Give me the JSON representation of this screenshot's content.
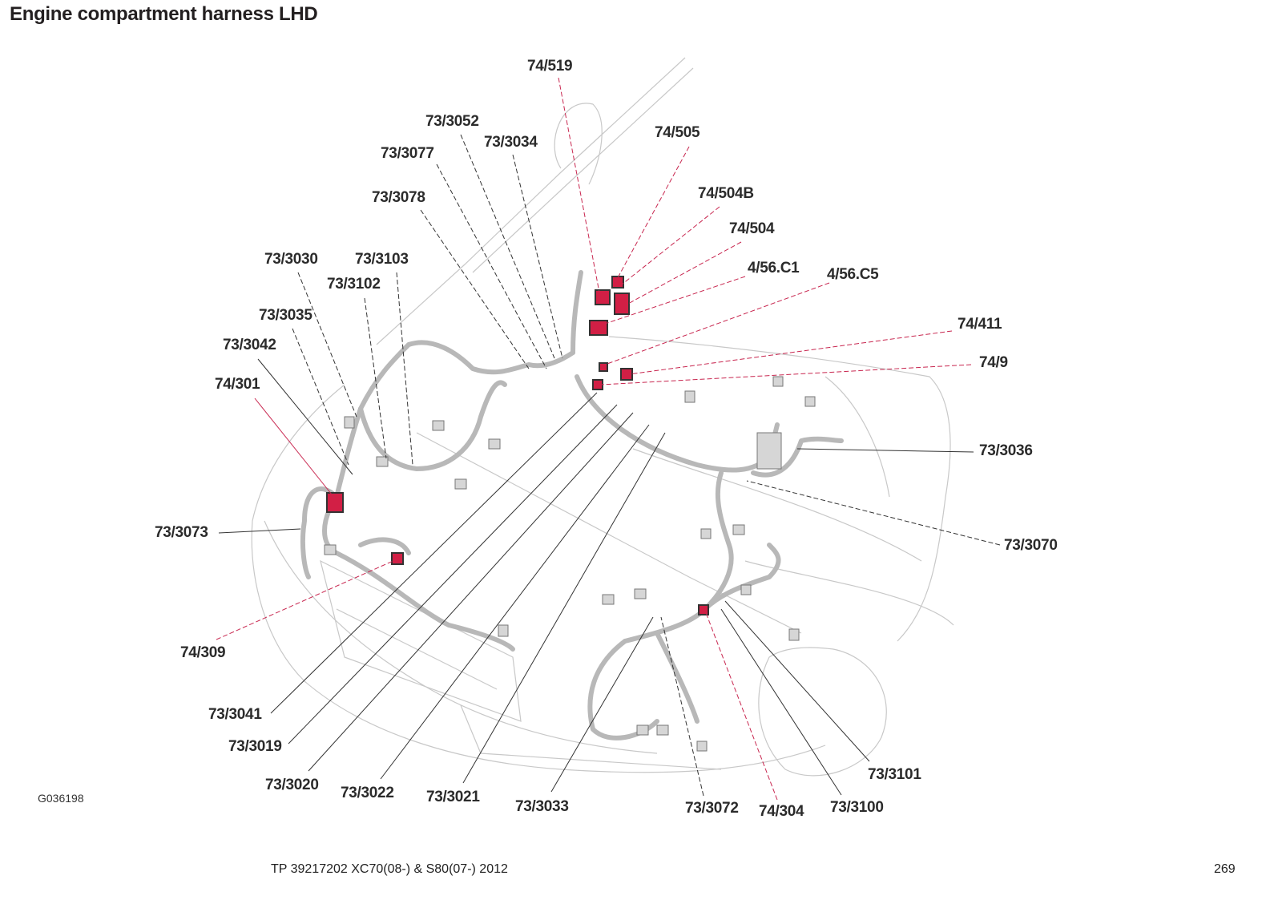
{
  "title": "Engine compartment harness LHD",
  "figure_id": "G036198",
  "footer": {
    "document": "TP 39217202 XC70(08-) & S80(07-) 2012",
    "page": "269"
  },
  "colors": {
    "connector_highlight": "#d21f45",
    "harness": "#b8b8b8",
    "outline": "#c8c8c8",
    "leader_red": "#c8264f",
    "leader_black": "#333333"
  },
  "labels": [
    {
      "text": "74/519",
      "type": "highlighted"
    },
    {
      "text": "73/3052",
      "type": "normal"
    },
    {
      "text": "73/3034",
      "type": "normal"
    },
    {
      "text": "74/505",
      "type": "highlighted"
    },
    {
      "text": "73/3077",
      "type": "normal"
    },
    {
      "text": "74/504B",
      "type": "highlighted"
    },
    {
      "text": "73/3078",
      "type": "normal"
    },
    {
      "text": "74/504",
      "type": "highlighted"
    },
    {
      "text": "4/56.C1",
      "type": "highlighted"
    },
    {
      "text": "4/56.C5",
      "type": "highlighted"
    },
    {
      "text": "74/411",
      "type": "highlighted"
    },
    {
      "text": "74/9",
      "type": "highlighted"
    },
    {
      "text": "73/3030",
      "type": "normal"
    },
    {
      "text": "73/3103",
      "type": "normal"
    },
    {
      "text": "73/3102",
      "type": "normal"
    },
    {
      "text": "73/3035",
      "type": "normal"
    },
    {
      "text": "73/3042",
      "type": "normal"
    },
    {
      "text": "74/301",
      "type": "highlighted"
    },
    {
      "text": "73/3036",
      "type": "normal"
    },
    {
      "text": "73/3070",
      "type": "normal"
    },
    {
      "text": "73/3073",
      "type": "normal"
    },
    {
      "text": "74/309",
      "type": "highlighted"
    },
    {
      "text": "73/3041",
      "type": "normal"
    },
    {
      "text": "73/3019",
      "type": "normal"
    },
    {
      "text": "73/3020",
      "type": "normal"
    },
    {
      "text": "73/3022",
      "type": "normal"
    },
    {
      "text": "73/3021",
      "type": "normal"
    },
    {
      "text": "73/3033",
      "type": "normal"
    },
    {
      "text": "73/3072",
      "type": "normal"
    },
    {
      "text": "74/304",
      "type": "highlighted"
    },
    {
      "text": "73/3100",
      "type": "normal"
    },
    {
      "text": "73/3101",
      "type": "normal"
    }
  ]
}
